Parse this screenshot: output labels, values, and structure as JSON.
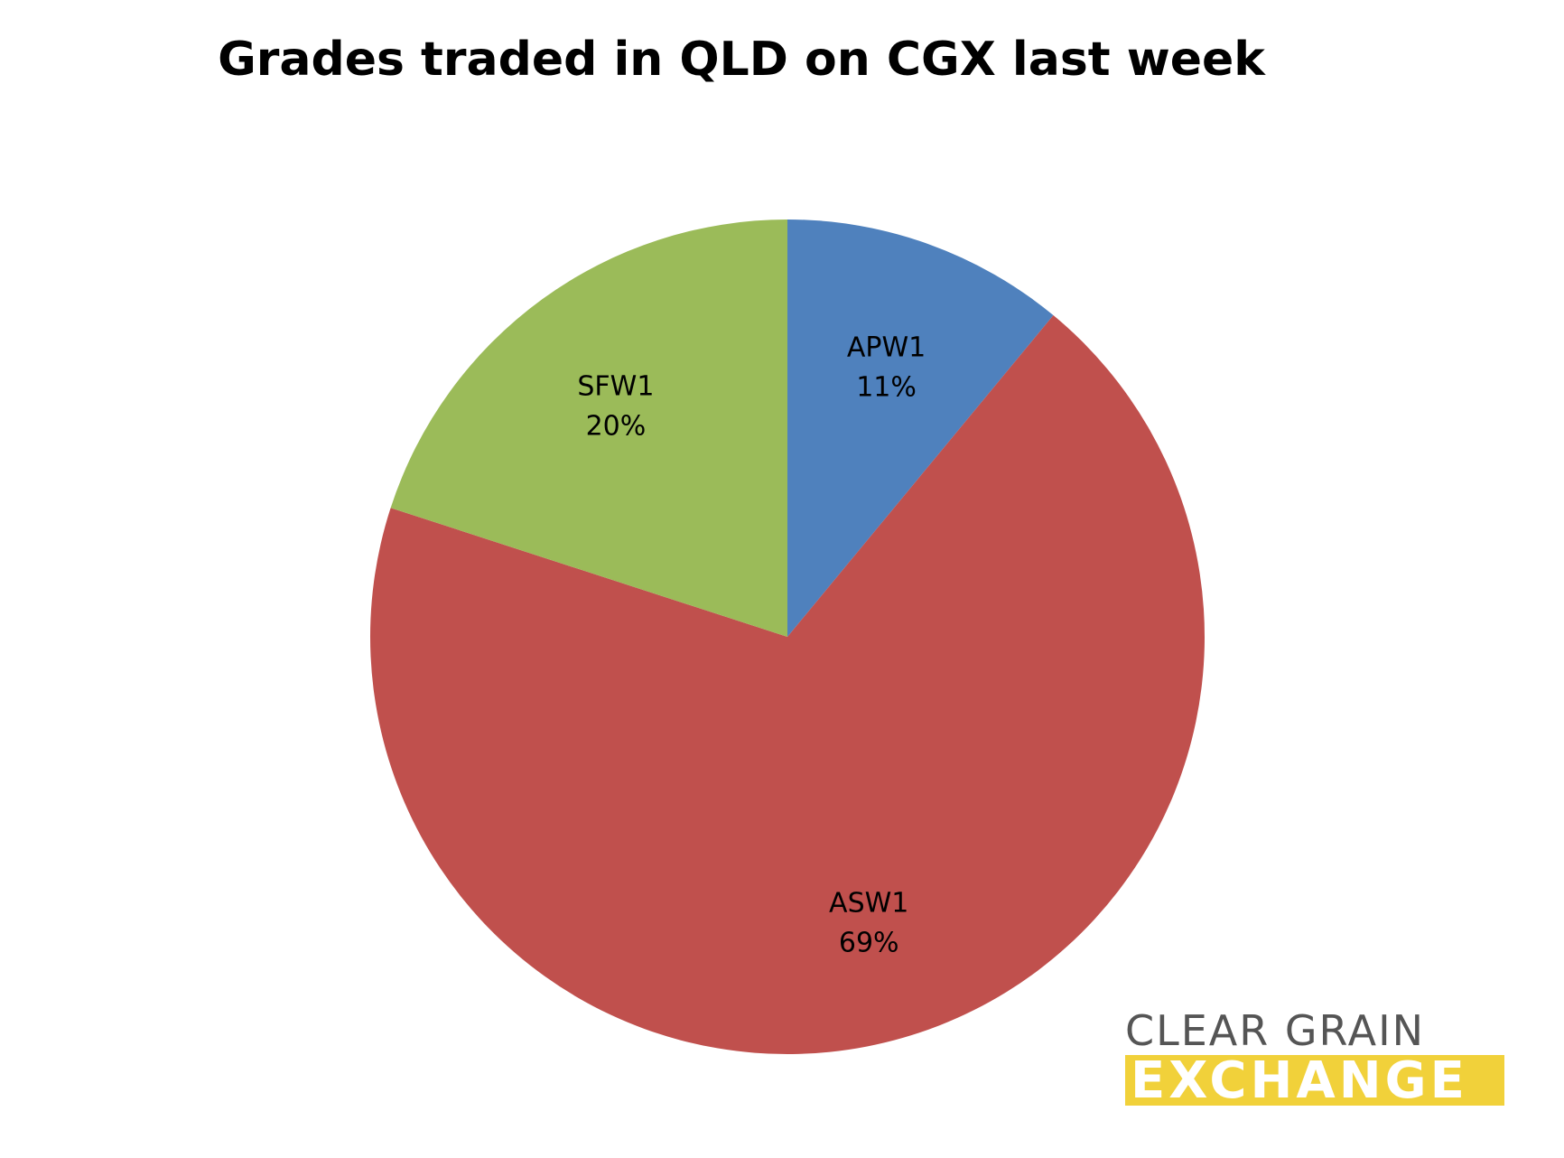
{
  "chart_data": {
    "type": "pie",
    "title": "Grades traded in QLD on CGX last week",
    "start_angle_deg": 0,
    "direction": "clockwise",
    "slices": [
      {
        "label": "APW1",
        "value": 11,
        "value_label": "11%",
        "color": "#4f81bd"
      },
      {
        "label": "ASW1",
        "value": 69,
        "value_label": "69%",
        "color": "#c0504d"
      },
      {
        "label": "SFW1",
        "value": 20,
        "value_label": "20%",
        "color": "#9bbb59"
      }
    ]
  },
  "logo": {
    "line1": "CLEAR GRAIN",
    "line2": "EXCHANGE",
    "text_color": "#555555",
    "bar_color": "#f1d13a"
  }
}
